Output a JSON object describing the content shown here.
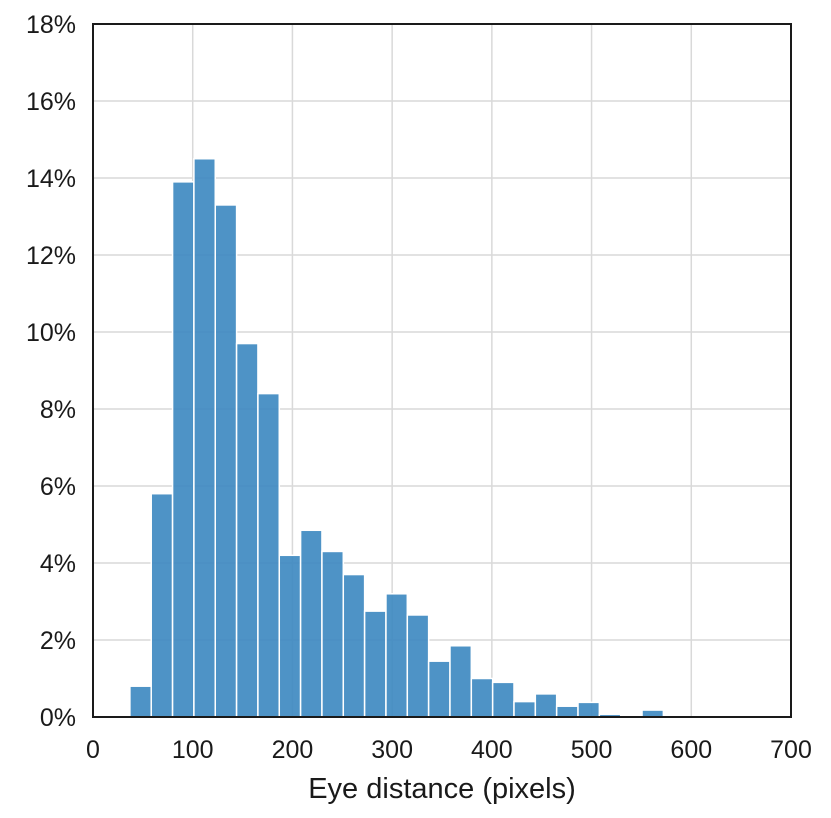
{
  "chart_data": {
    "type": "bar",
    "title": "",
    "xlabel": "Eye distance (pixels)",
    "ylabel": "",
    "xlim": [
      0,
      700
    ],
    "ylim": [
      0,
      18
    ],
    "x_ticks": [
      0,
      100,
      200,
      300,
      400,
      500,
      600,
      700
    ],
    "x_tick_labels": [
      "0",
      "100",
      "200",
      "300",
      "400",
      "500",
      "600",
      "700"
    ],
    "y_ticks": [
      0,
      2,
      4,
      6,
      8,
      10,
      12,
      14,
      16,
      18
    ],
    "y_tick_labels": [
      "0%",
      "2%",
      "4%",
      "6%",
      "8%",
      "10%",
      "12%",
      "14%",
      "16%",
      "18%"
    ],
    "grid": true,
    "bar_color": "#3b87c0",
    "bin_width": 21.4,
    "bin_starts": [
      37.0,
      58.4,
      79.8,
      101.2,
      122.6,
      144.0,
      165.4,
      186.8,
      208.2,
      229.6,
      251.0,
      272.4,
      293.8,
      315.2,
      336.6,
      358.0,
      379.4,
      400.8,
      422.2,
      443.6,
      465.0,
      486.4,
      507.8,
      529.2,
      550.6
    ],
    "values": [
      0.8,
      5.8,
      13.9,
      14.5,
      13.3,
      9.7,
      8.4,
      4.2,
      4.85,
      4.3,
      3.7,
      2.75,
      3.2,
      2.65,
      1.45,
      1.85,
      1.0,
      0.9,
      0.4,
      0.6,
      0.28,
      0.38,
      0.07,
      0.0,
      0.18
    ]
  }
}
